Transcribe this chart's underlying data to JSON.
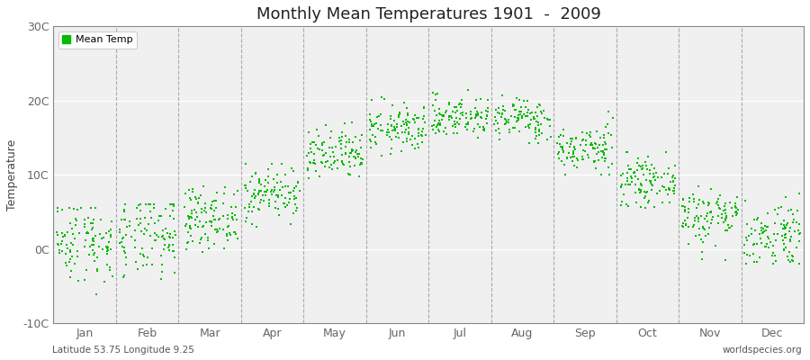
{
  "title": "Monthly Mean Temperatures 1901  -  2009",
  "ylabel": "Temperature",
  "xlabel_left": "Latitude 53.75 Longitude 9.25",
  "xlabel_right": "worldspecies.org",
  "legend_label": "Mean Temp",
  "ylim": [
    -10,
    30
  ],
  "yticks": [
    -10,
    0,
    10,
    20,
    30
  ],
  "ytick_labels": [
    "-10C",
    "0C",
    "10C",
    "20C",
    "30C"
  ],
  "months": [
    "Jan",
    "Feb",
    "Mar",
    "Apr",
    "May",
    "Jun",
    "Jul",
    "Aug",
    "Sep",
    "Oct",
    "Nov",
    "Dec"
  ],
  "dot_color": "#00BB00",
  "plot_bg_color": "#F0F0F0",
  "fig_bg_color": "#FFFFFF",
  "monthly_means": [
    1.2,
    1.5,
    4.2,
    7.5,
    12.5,
    16.2,
    17.8,
    17.5,
    13.5,
    9.0,
    4.5,
    2.0
  ],
  "monthly_stds": [
    2.8,
    2.8,
    2.0,
    1.8,
    1.8,
    1.6,
    1.4,
    1.4,
    1.6,
    1.5,
    2.0,
    2.3
  ],
  "monthly_mins": [
    -8.0,
    -8.0,
    -1.0,
    3.0,
    8.5,
    12.5,
    14.0,
    14.0,
    10.0,
    5.5,
    -1.5,
    -2.0
  ],
  "monthly_maxs": [
    5.5,
    6.0,
    8.5,
    11.5,
    17.5,
    20.5,
    21.5,
    21.0,
    18.5,
    13.0,
    8.5,
    7.5
  ],
  "n_years": 109,
  "seed": 42
}
